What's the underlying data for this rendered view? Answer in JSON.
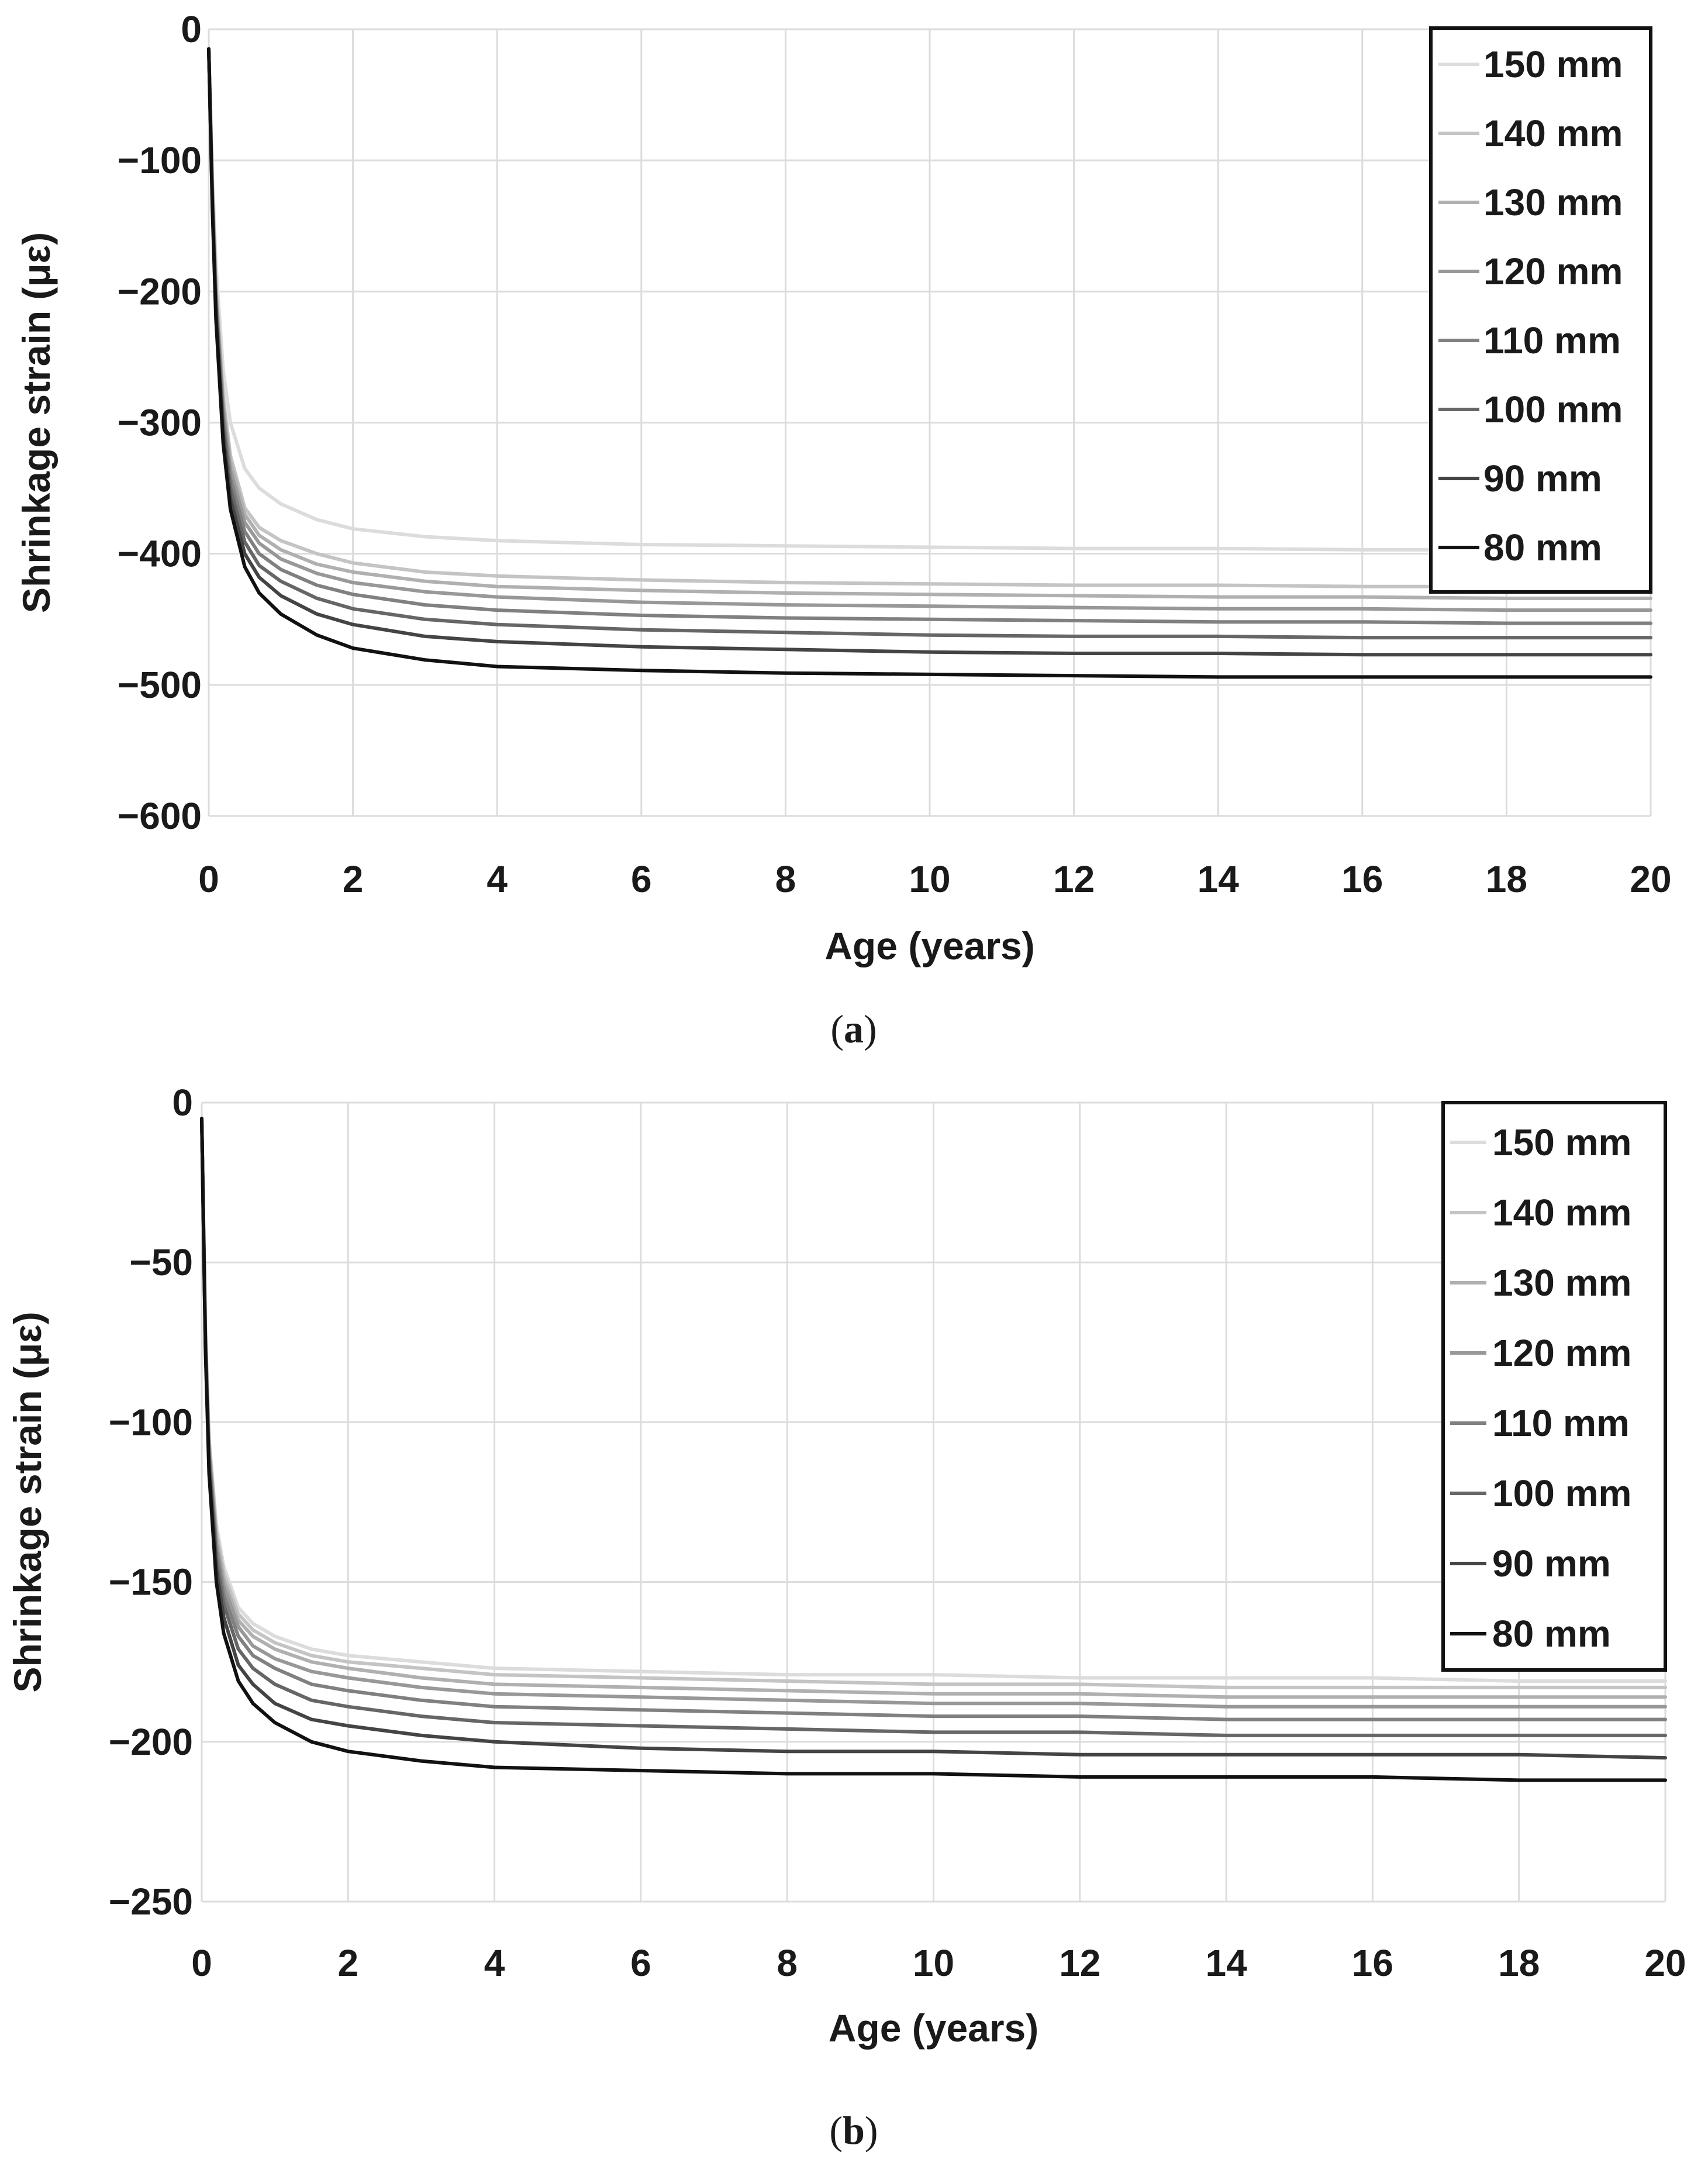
{
  "colors": {
    "background": "#ffffff",
    "grid": "#dcdcdc",
    "text": "#1a1a1a"
  },
  "chart_data": [
    {
      "panel": "a",
      "caption": "a",
      "type": "line",
      "title": "",
      "xlabel": "Age (years)",
      "ylabel": "Shrinkage strain (με)",
      "xlim": [
        0,
        20
      ],
      "ylim": [
        -600,
        0
      ],
      "xticks": [
        0,
        2,
        4,
        6,
        8,
        10,
        12,
        14,
        16,
        18,
        20
      ],
      "yticks": [
        0,
        -100,
        -200,
        -300,
        -400,
        -500,
        -600
      ],
      "ytick_labels": [
        "0",
        "−100",
        "−200",
        "−300",
        "−400",
        "−500",
        "−600"
      ],
      "grid": true,
      "legend_position": "top-right",
      "x": [
        0,
        0.05,
        0.1,
        0.2,
        0.3,
        0.5,
        0.7,
        1,
        1.5,
        2,
        3,
        4,
        6,
        8,
        10,
        12,
        14,
        16,
        18,
        20
      ],
      "series": [
        {
          "name": "150 mm",
          "color": "#dcdcdc",
          "values": [
            -15,
            -110,
            -180,
            -260,
            -300,
            -335,
            -350,
            -362,
            -374,
            -381,
            -387,
            -390,
            -393,
            -394,
            -395,
            -396,
            -396,
            -397,
            -397,
            -398
          ]
        },
        {
          "name": "140 mm",
          "color": "#c4c4c4",
          "values": [
            -15,
            -120,
            -195,
            -280,
            -325,
            -365,
            -380,
            -390,
            -400,
            -407,
            -414,
            -417,
            -420,
            -422,
            -423,
            -424,
            -424,
            -425,
            -425,
            -426
          ]
        },
        {
          "name": "130 mm",
          "color": "#b0b0b0",
          "values": [
            -15,
            -122,
            -198,
            -285,
            -330,
            -370,
            -386,
            -397,
            -408,
            -414,
            -421,
            -425,
            -428,
            -430,
            -431,
            -432,
            -433,
            -433,
            -434,
            -434
          ]
        },
        {
          "name": "120 mm",
          "color": "#989898",
          "values": [
            -15,
            -125,
            -202,
            -290,
            -336,
            -376,
            -392,
            -404,
            -415,
            -422,
            -429,
            -433,
            -437,
            -439,
            -440,
            -441,
            -442,
            -442,
            -443,
            -443
          ]
        },
        {
          "name": "110 mm",
          "color": "#808080",
          "values": [
            -15,
            -128,
            -206,
            -296,
            -343,
            -383,
            -400,
            -412,
            -424,
            -431,
            -439,
            -443,
            -447,
            -449,
            -450,
            -451,
            -452,
            -452,
            -453,
            -453
          ]
        },
        {
          "name": "100 mm",
          "color": "#666666",
          "values": [
            -15,
            -131,
            -211,
            -302,
            -350,
            -391,
            -409,
            -421,
            -434,
            -442,
            -450,
            -454,
            -458,
            -460,
            -462,
            -463,
            -463,
            -464,
            -464,
            -464
          ]
        },
        {
          "name": "90 mm",
          "color": "#444444",
          "values": [
            -15,
            -134,
            -216,
            -309,
            -358,
            -400,
            -418,
            -432,
            -446,
            -454,
            -463,
            -467,
            -471,
            -473,
            -475,
            -476,
            -476,
            -477,
            -477,
            -477
          ]
        },
        {
          "name": "80 mm",
          "color": "#111111",
          "values": [
            -15,
            -137,
            -221,
            -316,
            -366,
            -410,
            -430,
            -446,
            -462,
            -472,
            -481,
            -486,
            -489,
            -491,
            -492,
            -493,
            -494,
            -494,
            -494,
            -494
          ]
        }
      ]
    },
    {
      "panel": "b",
      "caption": "b",
      "type": "line",
      "title": "",
      "xlabel": "Age (years)",
      "ylabel": "Shrinkage strain (με)",
      "xlim": [
        0,
        20
      ],
      "ylim": [
        -250,
        0
      ],
      "xticks": [
        0,
        2,
        4,
        6,
        8,
        10,
        12,
        14,
        16,
        18,
        20
      ],
      "yticks": [
        0,
        -50,
        -100,
        -150,
        -200,
        -250
      ],
      "ytick_labels": [
        "0",
        "−50",
        "−100",
        "−150",
        "−200",
        "−250"
      ],
      "grid": true,
      "legend_position": "top-right",
      "x": [
        0,
        0.05,
        0.1,
        0.2,
        0.3,
        0.5,
        0.7,
        1,
        1.5,
        2,
        3,
        4,
        6,
        8,
        10,
        12,
        14,
        16,
        18,
        20
      ],
      "series": [
        {
          "name": "150 mm",
          "color": "#dcdcdc",
          "values": [
            -5,
            -70,
            -105,
            -132,
            -145,
            -158,
            -163,
            -167,
            -171,
            -173,
            -175,
            -177,
            -178,
            -179,
            -179,
            -180,
            -180,
            -180,
            -181,
            -181
          ]
        },
        {
          "name": "140 mm",
          "color": "#c4c4c4",
          "values": [
            -5,
            -71,
            -106,
            -134,
            -147,
            -160,
            -165,
            -169,
            -173,
            -175,
            -177,
            -179,
            -180,
            -181,
            -182,
            -182,
            -183,
            -183,
            -183,
            -183
          ]
        },
        {
          "name": "130 mm",
          "color": "#b0b0b0",
          "values": [
            -5,
            -72,
            -107,
            -136,
            -149,
            -162,
            -167,
            -171,
            -175,
            -177,
            -180,
            -182,
            -183,
            -184,
            -185,
            -185,
            -186,
            -186,
            -186,
            -186
          ]
        },
        {
          "name": "120 mm",
          "color": "#989898",
          "values": [
            -5,
            -73,
            -109,
            -138,
            -151,
            -164,
            -170,
            -174,
            -178,
            -180,
            -183,
            -185,
            -186,
            -187,
            -188,
            -188,
            -189,
            -189,
            -189,
            -189
          ]
        },
        {
          "name": "110 mm",
          "color": "#808080",
          "values": [
            -5,
            -74,
            -110,
            -140,
            -154,
            -167,
            -173,
            -177,
            -182,
            -184,
            -187,
            -189,
            -190,
            -191,
            -192,
            -192,
            -193,
            -193,
            -193,
            -193
          ]
        },
        {
          "name": "100 mm",
          "color": "#666666",
          "values": [
            -5,
            -75,
            -112,
            -143,
            -157,
            -171,
            -177,
            -182,
            -187,
            -189,
            -192,
            -194,
            -195,
            -196,
            -197,
            -197,
            -198,
            -198,
            -198,
            -198
          ]
        },
        {
          "name": "90 mm",
          "color": "#444444",
          "values": [
            -5,
            -76,
            -114,
            -146,
            -161,
            -176,
            -182,
            -188,
            -193,
            -195,
            -198,
            -200,
            -202,
            -203,
            -203,
            -204,
            -204,
            -204,
            -204,
            -205
          ]
        },
        {
          "name": "80 mm",
          "color": "#111111",
          "values": [
            -5,
            -77,
            -116,
            -150,
            -166,
            -181,
            -188,
            -194,
            -200,
            -203,
            -206,
            -208,
            -209,
            -210,
            -210,
            -211,
            -211,
            -211,
            -212,
            -212
          ]
        }
      ]
    }
  ]
}
